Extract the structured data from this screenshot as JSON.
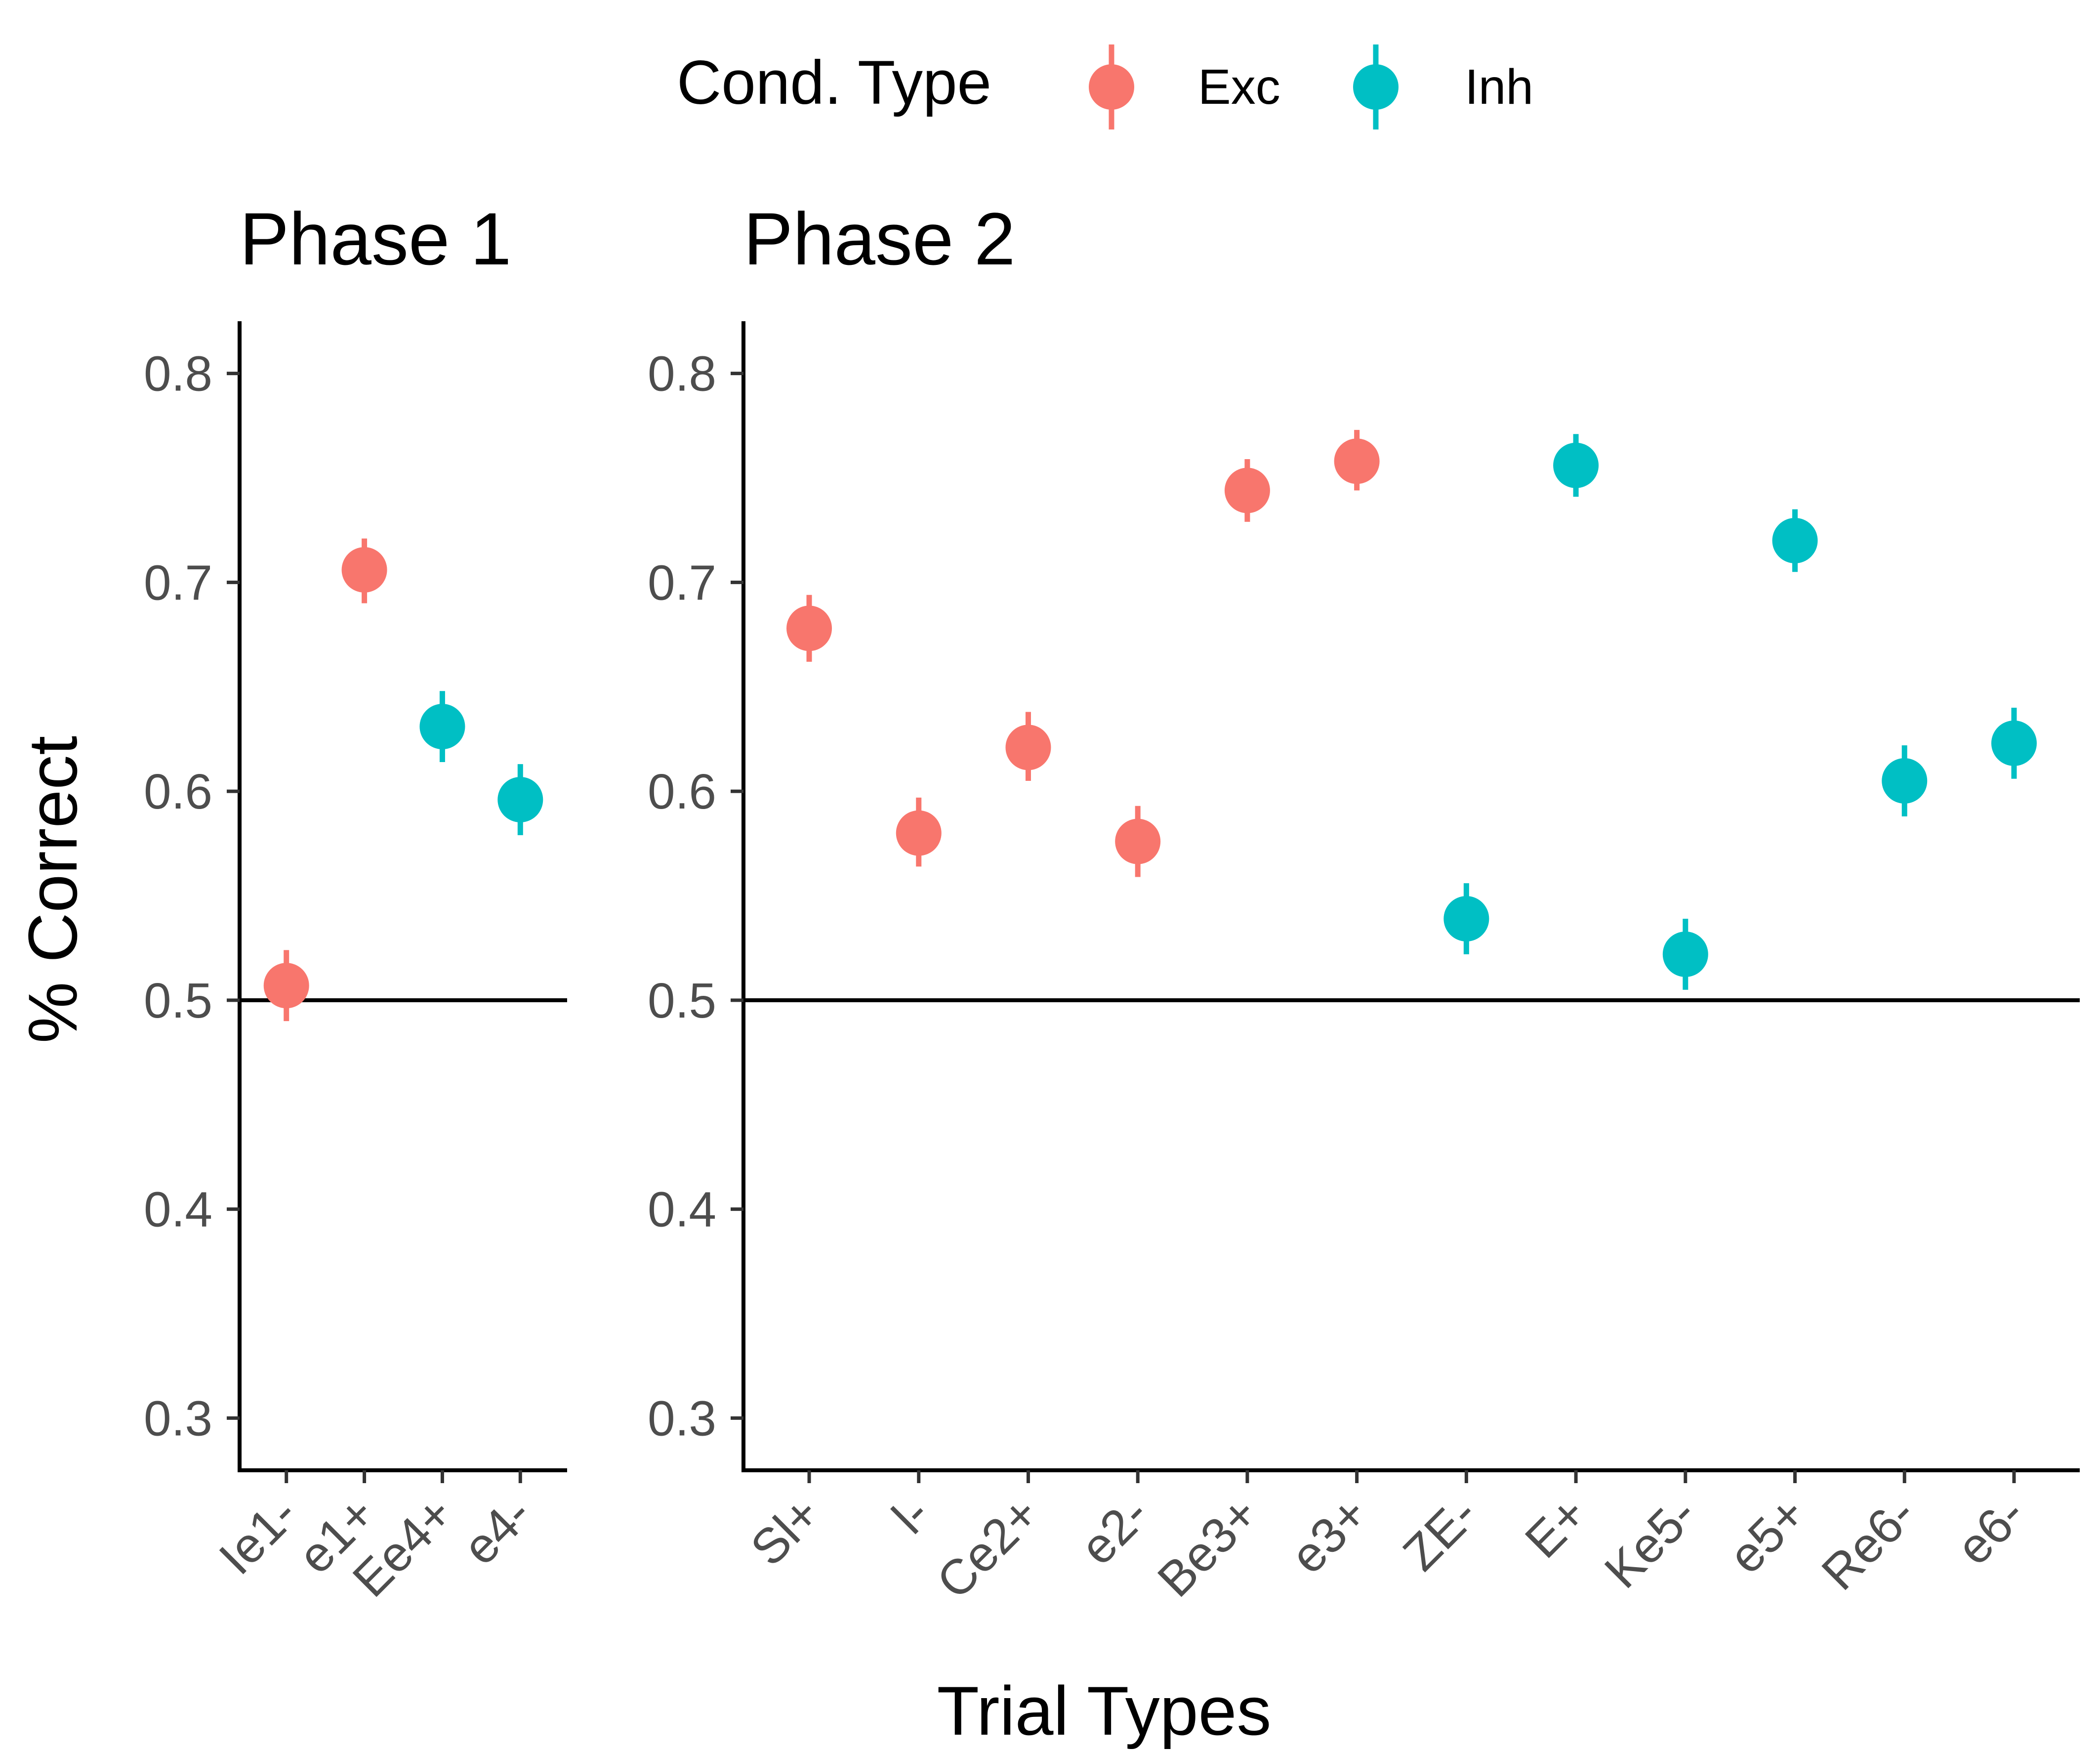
{
  "chart_data": {
    "type": "scatter",
    "xlabel": "Trial Types",
    "ylabel": "% Correct",
    "ylim": [
      0.275,
      0.825
    ],
    "yticks": [
      0.3,
      0.4,
      0.5,
      0.6,
      0.7,
      0.8
    ],
    "reference_line": 0.5,
    "grid": false,
    "legend": {
      "title": "Cond. Type",
      "placement": "top",
      "entries": [
        {
          "name": "Exc",
          "color": "#F8766D"
        },
        {
          "name": "Inh",
          "color": "#00BFC4"
        }
      ]
    },
    "panels": [
      {
        "title": "Phase 1",
        "categories": [
          "Ie1-",
          "e1+",
          "Ee4+",
          "e4-"
        ],
        "points": [
          {
            "x": "Ie1-",
            "y": 0.507,
            "ymin": 0.49,
            "ymax": 0.524,
            "type": "Exc"
          },
          {
            "x": "e1+",
            "y": 0.706,
            "ymin": 0.69,
            "ymax": 0.721,
            "type": "Exc"
          },
          {
            "x": "Ee4+",
            "y": 0.631,
            "ymin": 0.614,
            "ymax": 0.648,
            "type": "Inh"
          },
          {
            "x": "e4-",
            "y": 0.596,
            "ymin": 0.579,
            "ymax": 0.613,
            "type": "Inh"
          }
        ]
      },
      {
        "title": "Phase 2",
        "categories": [
          "Sl+",
          "l-",
          "Ce2+",
          "e2-",
          "Be3+",
          "e3+",
          "ZE-",
          "E+",
          "Ke5-",
          "e5+",
          "Re6-",
          "e6-"
        ],
        "points": [
          {
            "x": "Sl+",
            "y": 0.678,
            "ymin": 0.662,
            "ymax": 0.694,
            "type": "Exc"
          },
          {
            "x": "l-",
            "y": 0.58,
            "ymin": 0.564,
            "ymax": 0.597,
            "type": "Exc"
          },
          {
            "x": "Ce2+",
            "y": 0.621,
            "ymin": 0.605,
            "ymax": 0.638,
            "type": "Exc"
          },
          {
            "x": "e2-",
            "y": 0.576,
            "ymin": 0.559,
            "ymax": 0.593,
            "type": "Exc"
          },
          {
            "x": "Be3+",
            "y": 0.744,
            "ymin": 0.729,
            "ymax": 0.759,
            "type": "Exc"
          },
          {
            "x": "e3+",
            "y": 0.758,
            "ymin": 0.744,
            "ymax": 0.773,
            "type": "Exc"
          },
          {
            "x": "ZE-",
            "y": 0.539,
            "ymin": 0.522,
            "ymax": 0.556,
            "type": "Inh"
          },
          {
            "x": "E+",
            "y": 0.756,
            "ymin": 0.741,
            "ymax": 0.771,
            "type": "Inh"
          },
          {
            "x": "Ke5-",
            "y": 0.522,
            "ymin": 0.505,
            "ymax": 0.539,
            "type": "Inh"
          },
          {
            "x": "e5+",
            "y": 0.72,
            "ymin": 0.705,
            "ymax": 0.735,
            "type": "Inh"
          },
          {
            "x": "Re6-",
            "y": 0.605,
            "ymin": 0.588,
            "ymax": 0.622,
            "type": "Inh"
          },
          {
            "x": "e6-",
            "y": 0.623,
            "ymin": 0.606,
            "ymax": 0.64,
            "type": "Inh"
          }
        ]
      }
    ]
  }
}
